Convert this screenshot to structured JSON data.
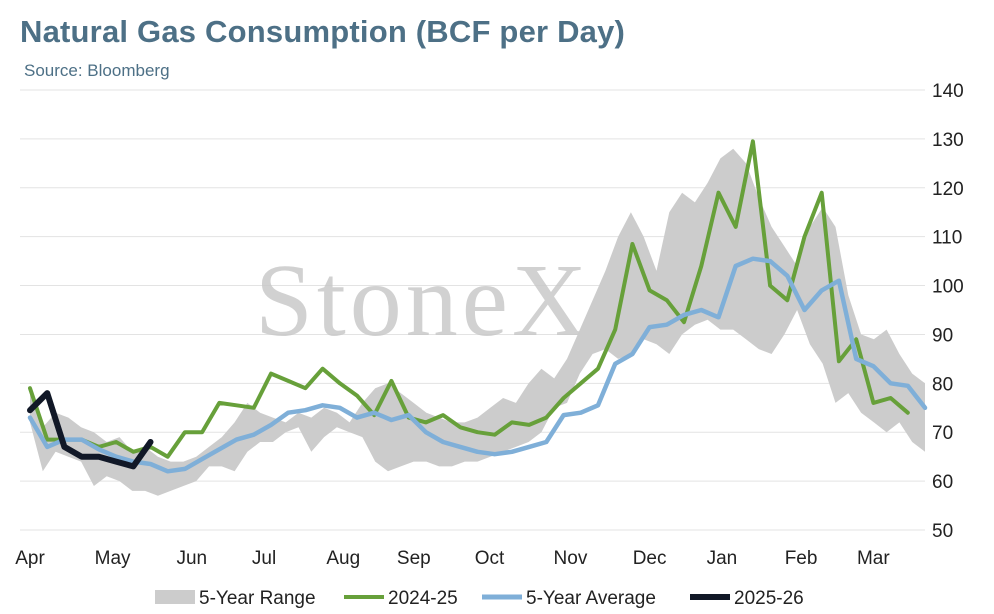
{
  "chart_data": {
    "type": "line",
    "title": "Natural Gas Consumption (BCF per Day)",
    "subtitle": "Source: Bloomberg",
    "watermark": "StoneX",
    "watermark_mark": "®",
    "xlabel": "",
    "ylabel": "",
    "ylim": [
      50,
      140
    ],
    "yticks": [
      50,
      60,
      70,
      80,
      90,
      100,
      110,
      120,
      130,
      140
    ],
    "y_axis_position": "right",
    "grid": true,
    "legend_position": "bottom",
    "x_labels": [
      "Apr",
      "May",
      "Jun",
      "Jul",
      "Aug",
      "Sep",
      "Oct",
      "Nov",
      "Dec",
      "Jan",
      "Feb",
      "Mar"
    ],
    "x_label_weeks": [
      0,
      4.8,
      9.4,
      13.6,
      18.2,
      22.3,
      26.7,
      31.4,
      36.0,
      40.2,
      44.8,
      49.0
    ],
    "range": {
      "name": "5-Year Range",
      "color": "#cccccc",
      "upper": [
        79,
        71,
        74,
        73,
        71,
        70,
        68,
        69,
        66,
        67,
        65,
        64,
        64,
        65,
        67,
        69,
        72,
        76,
        74,
        73,
        72,
        74,
        73,
        75,
        74,
        72,
        76,
        79,
        80,
        78,
        76,
        74,
        73,
        72,
        72,
        73,
        75,
        77,
        76,
        80,
        83,
        81,
        85,
        91,
        97,
        103,
        110,
        115,
        110,
        103,
        115,
        119,
        117,
        121,
        126,
        128,
        125,
        118,
        112,
        108,
        104,
        112,
        116,
        112,
        98,
        90,
        89,
        91,
        86,
        82,
        80
      ],
      "lower": [
        72,
        62,
        66,
        65,
        64,
        59,
        61,
        60,
        58,
        58,
        57,
        58,
        59,
        60,
        63,
        63,
        62,
        66,
        68,
        68,
        70,
        71,
        66,
        69,
        71,
        70,
        69,
        64,
        62,
        63,
        64,
        64,
        63,
        63,
        64,
        64,
        65,
        66,
        67,
        68,
        70,
        75,
        76,
        82,
        86,
        87,
        85,
        86,
        89,
        88,
        86,
        90,
        92,
        93,
        91,
        91,
        89,
        87,
        86,
        90,
        95,
        88,
        84,
        76,
        78,
        74,
        72,
        70,
        72,
        68,
        66
      ]
    },
    "series": [
      {
        "name": "2024-25",
        "color": "#67a03a",
        "values": [
          79,
          68.5,
          68.5,
          68.5,
          67,
          68,
          66,
          67,
          65,
          70,
          70,
          76,
          75.5,
          75,
          82,
          80.5,
          79,
          83,
          80,
          77.5,
          73.5,
          80.5,
          73,
          72,
          73.5,
          71,
          70,
          69.5,
          72,
          71.5,
          73,
          77,
          80,
          83,
          91,
          108.5,
          99,
          97,
          92.5,
          104,
          119,
          112,
          129.5,
          100,
          97,
          110,
          119,
          84.5,
          89,
          76,
          77,
          74
        ]
      },
      {
        "name": "5-Year Average",
        "color": "#7fafd8",
        "values": [
          73,
          67,
          68.5,
          68.5,
          66.5,
          65,
          64,
          63.5,
          62,
          62.5,
          64.5,
          66.5,
          68.5,
          69.5,
          71.5,
          74,
          74.5,
          75.5,
          75,
          73,
          74,
          72.5,
          73.5,
          70,
          68,
          67,
          66,
          65.5,
          66,
          67,
          68,
          73.5,
          74,
          75.5,
          84,
          86,
          91.5,
          92,
          94,
          95,
          93.5,
          104,
          105.5,
          105,
          102,
          95,
          99,
          101,
          85,
          83.5,
          80,
          79.5,
          75
        ]
      },
      {
        "name": "2025-26",
        "color": "#111827",
        "values": [
          74.5,
          78,
          67,
          65,
          65,
          64,
          63,
          68
        ]
      }
    ]
  }
}
